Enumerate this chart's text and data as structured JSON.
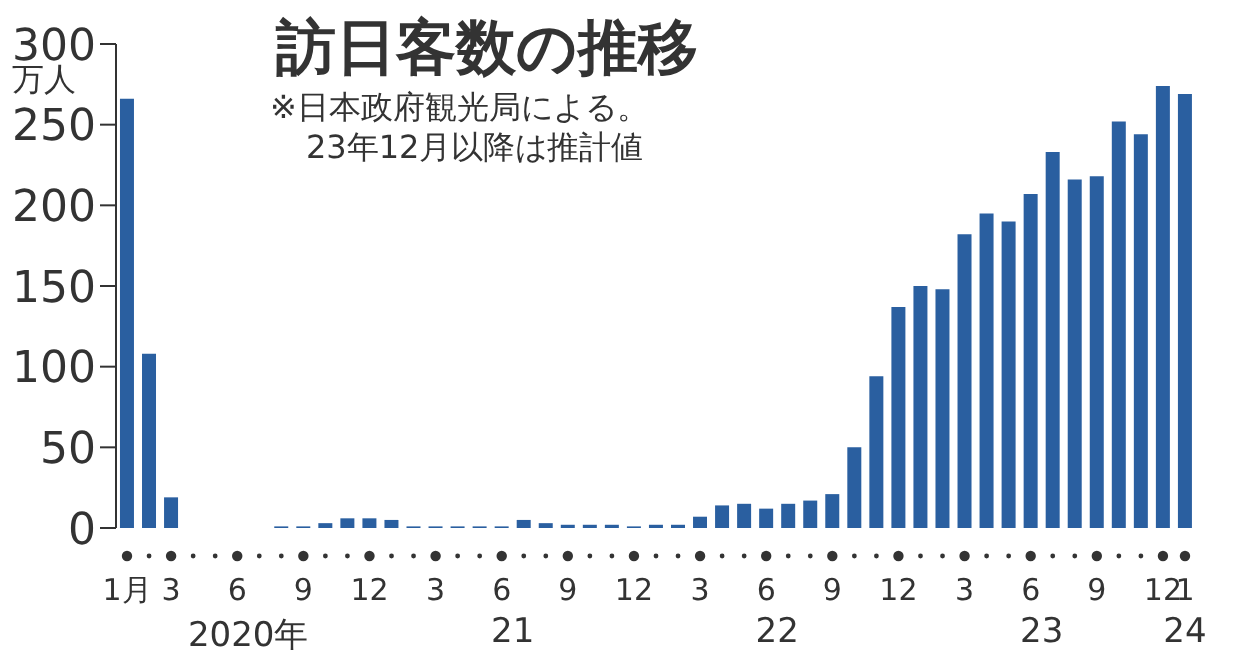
{
  "chart_data": {
    "type": "bar",
    "title": "訪日客数の推移",
    "annotations": [
      "※日本政府観光局による。",
      "23年12月以降は推計値",
      "2020年",
      "21",
      "22",
      "23",
      "24"
    ],
    "ylabel": "万人",
    "categories": [
      "1月",
      null,
      "3",
      null,
      null,
      "6",
      null,
      null,
      "9",
      null,
      null,
      "12",
      null,
      null,
      "3",
      null,
      null,
      "6",
      null,
      null,
      "9",
      null,
      null,
      "12",
      null,
      null,
      "3",
      null,
      null,
      "6",
      null,
      null,
      "9",
      null,
      null,
      "12",
      null,
      null,
      "3",
      null,
      null,
      "6",
      null,
      null,
      "9",
      null,
      null,
      "12",
      "1"
    ],
    "values": [
      266,
      108,
      19,
      0,
      0,
      0,
      0,
      1,
      1,
      3,
      6,
      6,
      5,
      1,
      1,
      1,
      1,
      1,
      5,
      3,
      2,
      2,
      2,
      1,
      2,
      2,
      7,
      14,
      15,
      12,
      15,
      17,
      21,
      50,
      94,
      137,
      150,
      148,
      182,
      195,
      190,
      207,
      233,
      216,
      218,
      252,
      244,
      274,
      269
    ],
    "color": "#2a5fa0",
    "ylim": [
      0,
      300
    ],
    "yticks": [
      0,
      50,
      100,
      150,
      200,
      250,
      300
    ],
    "grid": false
  }
}
